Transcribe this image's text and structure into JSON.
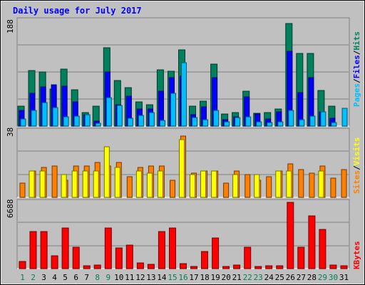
{
  "chart_data": [
    {
      "type": "bar",
      "title": "Daily usage for July 2017",
      "ymax_label": "188",
      "categories": [
        "1",
        "2",
        "3",
        "4",
        "5",
        "6",
        "7",
        "8",
        "9",
        "10",
        "11",
        "12",
        "13",
        "14",
        "15",
        "16",
        "17",
        "18",
        "19",
        "20",
        "21",
        "22",
        "23",
        "24",
        "25",
        "26",
        "27",
        "28",
        "29",
        "30",
        "31"
      ],
      "weekend_days": [
        "1",
        "2",
        "8",
        "9",
        "15",
        "16",
        "22",
        "23",
        "29",
        "30"
      ],
      "ylim": [
        0,
        188
      ],
      "series": [
        {
          "name": "Hits",
          "color": "#00805c",
          "values": [
            36,
            99,
            97,
            66,
            102,
            65,
            24,
            36,
            140,
            81,
            69,
            43,
            38,
            100,
            98,
            136,
            36,
            44,
            111,
            21,
            24,
            62,
            23,
            24,
            30,
            183,
            130,
            130,
            63,
            36,
            0
          ]
        },
        {
          "name": "Files",
          "color": "#0000ff",
          "values": [
            28,
            59,
            70,
            74,
            71,
            43,
            20,
            9,
            97,
            38,
            53,
            31,
            30,
            62,
            86,
            89,
            20,
            34,
            86,
            12,
            16,
            52,
            21,
            13,
            25,
            133,
            60,
            86,
            26,
            14,
            0
          ]
        },
        {
          "name": "Pages",
          "color": "#00bfff",
          "values": [
            13,
            28,
            42,
            33,
            17,
            18,
            20,
            5,
            51,
            37,
            14,
            19,
            24,
            10,
            58,
            113,
            15,
            11,
            28,
            8,
            15,
            17,
            8,
            6,
            7,
            28,
            12,
            18,
            25,
            6,
            32
          ]
        }
      ],
      "series_label_colors": {
        "Pages": "#00bfff",
        "Files": "#0000ff",
        "Hits": "#00805c"
      }
    },
    {
      "type": "bar",
      "ymax_label": "38",
      "ylim": [
        0,
        38
      ],
      "series": [
        {
          "name": "Visits",
          "color": "#ffff00",
          "values": [
            0,
            15,
            15,
            0,
            13,
            15,
            15,
            15,
            29,
            17,
            0,
            15,
            14,
            15,
            0,
            33,
            13,
            15,
            15,
            0,
            13,
            0,
            13,
            0,
            15,
            15,
            0,
            0,
            15,
            0,
            0
          ]
        },
        {
          "name": "Sites",
          "color": "#ff8000",
          "values": [
            8,
            15,
            17,
            18,
            10,
            18,
            18,
            20,
            18,
            20,
            12,
            17,
            18,
            18,
            10,
            35,
            14,
            15,
            15,
            8,
            15,
            13,
            10,
            12,
            15,
            19,
            16,
            14,
            18,
            11,
            16
          ]
        }
      ],
      "series_label_colors": {
        "Sites": "#ff8000",
        "Visits": "#ffff00"
      }
    },
    {
      "type": "bar",
      "ymax_label": "6688",
      "ylim": [
        0,
        6688
      ],
      "series": [
        {
          "name": "KBytes",
          "color": "#ff0000",
          "values": [
            700,
            3720,
            3720,
            1290,
            4090,
            2160,
            280,
            360,
            4130,
            2080,
            2340,
            590,
            400,
            3720,
            4130,
            500,
            180,
            1760,
            3080,
            200,
            350,
            2160,
            250,
            280,
            300,
            6688,
            2160,
            5290,
            3990,
            380,
            300
          ]
        }
      ],
      "series_label_colors": {
        "KBytes": "#ff0000"
      }
    }
  ]
}
